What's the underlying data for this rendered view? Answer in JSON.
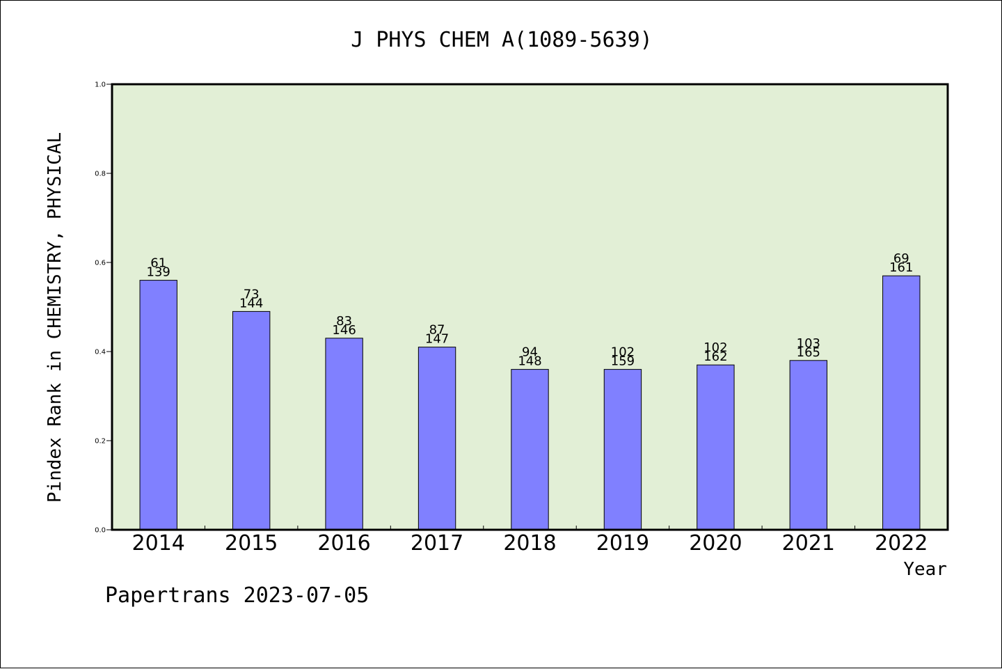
{
  "chart_data": {
    "type": "bar",
    "title": "J PHYS CHEM A(1089-5639)",
    "xlabel": "Year",
    "ylabel": "Pindex Rank in CHEMISTRY, PHYSICAL",
    "ylim": [
      0,
      1.0
    ],
    "yticks": [
      "0.0",
      "0.2",
      "0.4",
      "0.6",
      "0.8",
      "1.0"
    ],
    "ytick_values": [
      0.0,
      0.2,
      0.4,
      0.6,
      0.8,
      1.0
    ],
    "categories": [
      "2014",
      "2015",
      "2016",
      "2017",
      "2018",
      "2019",
      "2020",
      "2021",
      "2022"
    ],
    "values": [
      0.56,
      0.49,
      0.43,
      0.41,
      0.36,
      0.36,
      0.37,
      0.38,
      0.57
    ],
    "rank": [
      "61",
      "73",
      "83",
      "87",
      "94",
      "102",
      "102",
      "103",
      "69"
    ],
    "total": [
      "139",
      "144",
      "146",
      "147",
      "148",
      "159",
      "162",
      "165",
      "161"
    ],
    "grid": false,
    "legend": "none",
    "colors": {
      "plot_background": "#e2efd6",
      "bar_fill": "#8080ff",
      "bar_stroke": "#000000",
      "axis": "#000000"
    }
  },
  "footer": {
    "caption": "Papertrans 2023-07-05"
  }
}
